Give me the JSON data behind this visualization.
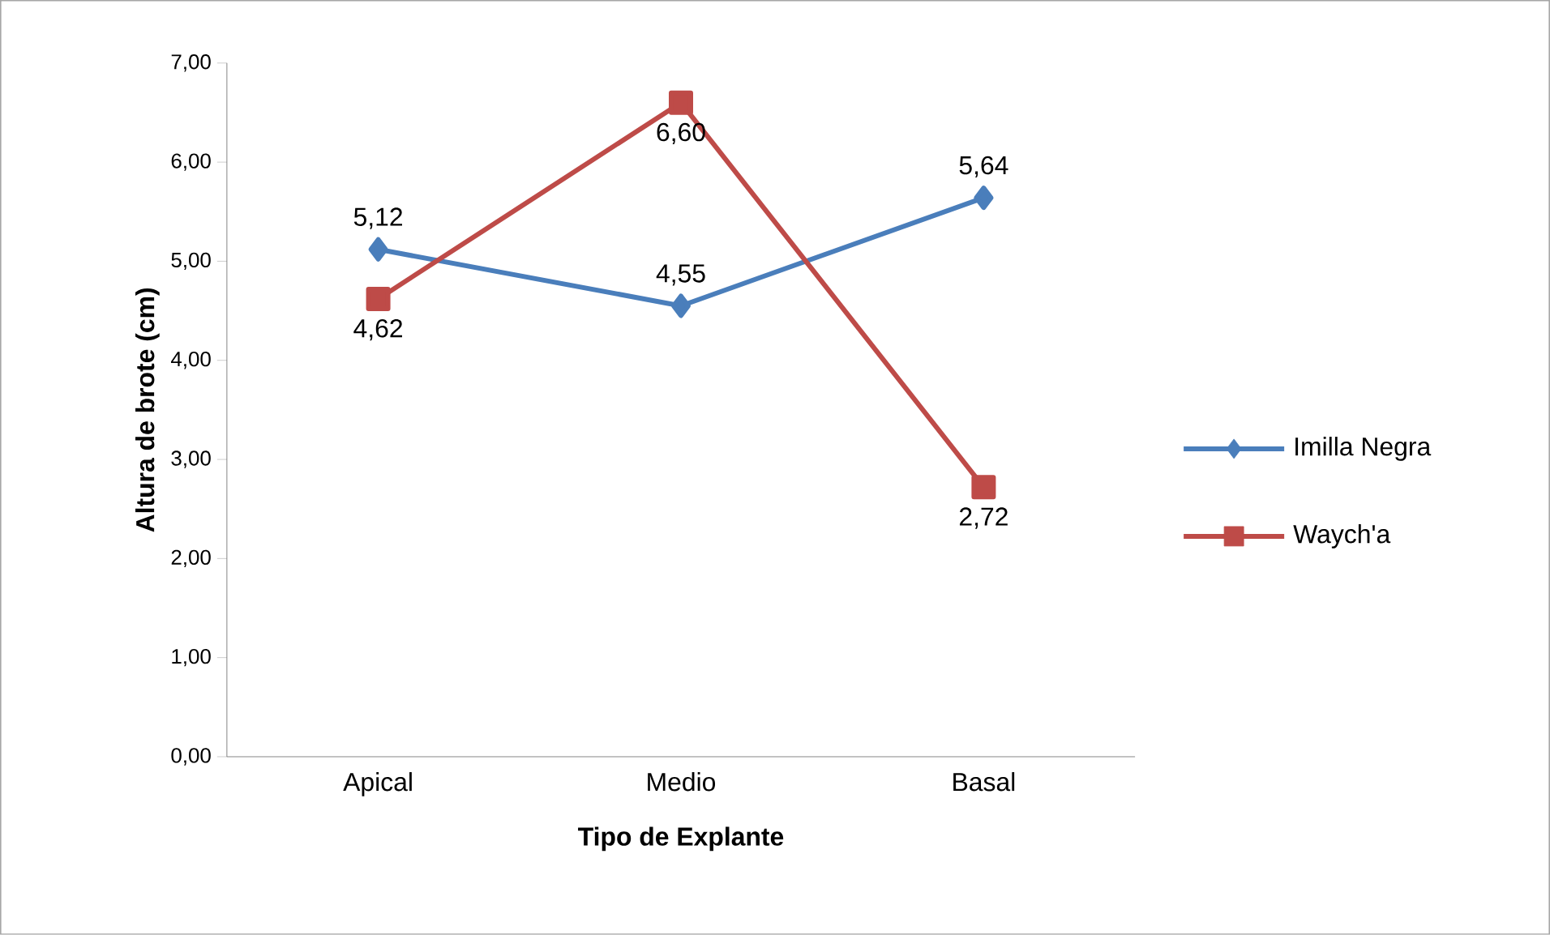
{
  "chart_data": {
    "type": "line",
    "xlabel": "Tipo de Explante",
    "ylabel": "Altura de brote (cm)",
    "categories": [
      "Apical",
      "Medio",
      "Basal"
    ],
    "series": [
      {
        "name": "Imilla Negra",
        "color": "#4a7ebb",
        "marker": "diamond",
        "values": [
          5.12,
          4.55,
          5.64
        ],
        "value_labels": [
          "5,12",
          "4,55",
          "5,64"
        ]
      },
      {
        "name": "Waych'a",
        "color": "#be4b48",
        "marker": "square",
        "values": [
          4.62,
          6.6,
          2.72
        ],
        "value_labels": [
          "4,62",
          "6,60",
          "2,72"
        ]
      }
    ],
    "ylim": [
      0,
      7
    ],
    "yticks": [
      {
        "value": 0,
        "label": "0,00"
      },
      {
        "value": 1,
        "label": "1,00"
      },
      {
        "value": 2,
        "label": "2,00"
      },
      {
        "value": 3,
        "label": "3,00"
      },
      {
        "value": 4,
        "label": "4,00"
      },
      {
        "value": 5,
        "label": "5,00"
      },
      {
        "value": 6,
        "label": "6,00"
      },
      {
        "value": 7,
        "label": "7,00"
      }
    ],
    "grid": false,
    "legend": "right",
    "line_style": "solid"
  }
}
